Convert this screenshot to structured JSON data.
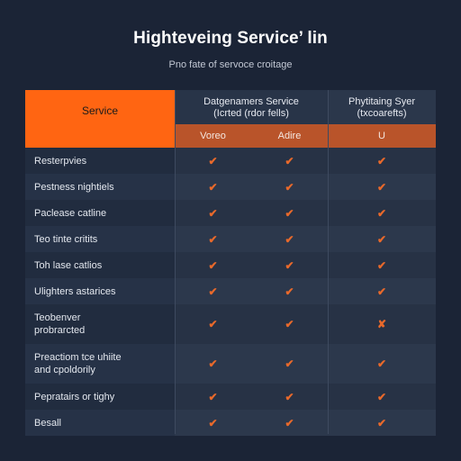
{
  "header": {
    "title": "Highteveing Service’ lin",
    "subtitle": "Pno fate of servoce croitage"
  },
  "table": {
    "service_header": "Service",
    "group_a": {
      "title": "Datgenamers Service",
      "subtitle": "(Icrted (rdor fells)"
    },
    "group_b": {
      "title": "Phytitaing Syer",
      "subtitle": "(txcoarefts)"
    },
    "sub_headers": [
      "Voreo",
      "Adire",
      "U"
    ],
    "rows": [
      {
        "label": "Resterpvies",
        "marks": [
          "✔",
          "✔",
          "✔"
        ]
      },
      {
        "label": "Pestness nightiels",
        "marks": [
          "✔",
          "✔",
          "✔"
        ]
      },
      {
        "label": "Paclease catline",
        "marks": [
          "✔",
          "✔",
          "✔"
        ]
      },
      {
        "label": "Teo tinte critits",
        "marks": [
          "✔",
          "✔",
          "✔"
        ]
      },
      {
        "label": "Toh lase catlios",
        "marks": [
          "✔",
          "✔",
          "✔"
        ]
      },
      {
        "label": "Ulighters astarices",
        "marks": [
          "✔",
          "✔",
          "✔"
        ]
      },
      {
        "label": "Teobenver\nprobrarcted",
        "marks": [
          "✔",
          "✔",
          "✘"
        ]
      },
      {
        "label": "Preactiom tce uhiite\nand cpoldorily",
        "marks": [
          "✔",
          "✔",
          "✔"
        ]
      },
      {
        "label": "Pepratairs or tighy",
        "marks": [
          "✔",
          "✔",
          "✔"
        ]
      },
      {
        "label": "Besall",
        "marks": [
          "✔",
          "✔",
          "✔"
        ]
      }
    ]
  }
}
